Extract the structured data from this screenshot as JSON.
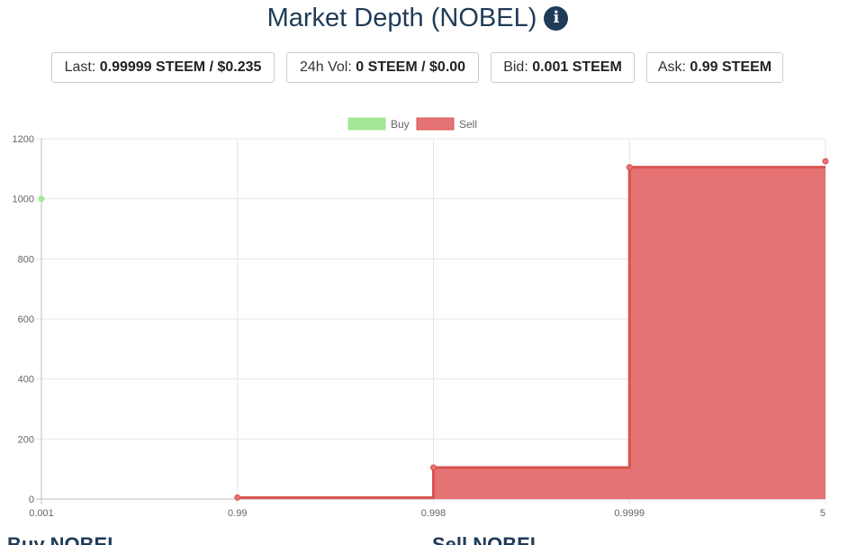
{
  "header": {
    "title": "Market Depth (NOBEL)",
    "info_icon": "info-icon"
  },
  "stats": {
    "last": {
      "label": "Last: ",
      "value": "0.99999 STEEM / $0.235"
    },
    "vol": {
      "label": "24h Vol: ",
      "value": "0 STEEM / $0.00"
    },
    "bid": {
      "label": "Bid: ",
      "value": "0.001 STEEM"
    },
    "ask": {
      "label": "Ask: ",
      "value": "0.99 STEEM"
    }
  },
  "bottom": {
    "buy_heading": "Buy NOBEL",
    "sell_heading": "Sell NOBEL"
  },
  "colors": {
    "buy": "#a3e896",
    "sell": "#e57373",
    "sell_line": "#d9534f",
    "title": "#1f3b57"
  },
  "chart_data": {
    "type": "area",
    "x_categories": [
      "0.001",
      "0.99",
      "0.998",
      "0.9999",
      "5"
    ],
    "ylim": [
      0,
      1200
    ],
    "yticks": [
      0,
      200,
      400,
      600,
      800,
      1000,
      1200
    ],
    "grid": true,
    "legend_position": "top",
    "series": [
      {
        "name": "Buy",
        "points": [
          {
            "x": "0.001",
            "y": 1000
          }
        ]
      },
      {
        "name": "Sell",
        "stepped": true,
        "points": [
          {
            "x": "0.99",
            "y": 5
          },
          {
            "x": "0.998",
            "y": 105
          },
          {
            "x": "0.9999",
            "y": 1105
          },
          {
            "x": "5",
            "y": 1125
          }
        ]
      }
    ]
  }
}
